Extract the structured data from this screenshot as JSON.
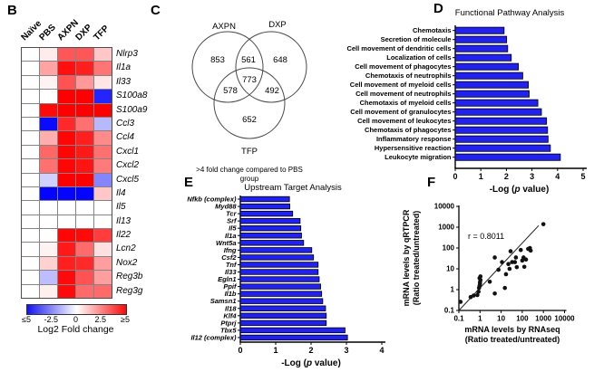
{
  "panels": {
    "b": "B",
    "c": "C",
    "d": "D",
    "e": "E",
    "f": "F"
  },
  "venn": {
    "sets": [
      "AXPN",
      "DXP",
      "TFP"
    ],
    "counts": {
      "axpn_only": "853",
      "axpn_dxp": "561",
      "dxp_only": "648",
      "axpn_tfp": "578",
      "all_three": "773",
      "dxp_tfp": "492",
      "tfp_only": "652"
    },
    "caption_lines": [
      ">4 fold change compared to PBS",
      "group"
    ]
  },
  "chart_data": [
    {
      "type": "heatmap",
      "columns": [
        "Naïve",
        "PBS",
        "AXPN",
        "DXP",
        "TFP"
      ],
      "rows": [
        "Nlrp3",
        "Il1a",
        "Il33",
        "S100a8",
        "S100a9",
        "Ccl3",
        "Ccl4",
        "Cxcl1",
        "Cxcl2",
        "Cxcl5",
        "Il4",
        "Il5",
        "Il13",
        "Il22",
        "Lcn2",
        "Nox2",
        "Reg3b",
        "Reg3g"
      ],
      "values": [
        [
          0,
          0.4,
          3.3,
          3.3,
          1.1
        ],
        [
          0,
          1.8,
          4.7,
          4.4,
          2.7
        ],
        [
          0,
          0.25,
          3.4,
          2.0,
          0.5
        ],
        [
          0,
          0,
          5,
          5,
          -4.3
        ],
        [
          0,
          4.8,
          5,
          5,
          5
        ],
        [
          0,
          -4.8,
          4.2,
          2.8,
          -1.4
        ],
        [
          0,
          1.6,
          4.9,
          4.4,
          2.3
        ],
        [
          0,
          3.0,
          4.9,
          4.5,
          2.8
        ],
        [
          0,
          2.8,
          4.9,
          4.6,
          2.6
        ],
        [
          0,
          -0.9,
          5,
          5,
          -2.4
        ],
        [
          0,
          -4.9,
          -4.9,
          -4.9,
          1.1
        ],
        [
          0,
          0,
          0,
          0,
          0
        ],
        [
          0,
          0,
          0,
          0,
          0
        ],
        [
          0,
          0,
          4.9,
          4.8,
          3.8
        ],
        [
          0,
          0.25,
          4.5,
          2.9,
          0.6
        ],
        [
          0,
          0.9,
          4.4,
          4.2,
          1.9
        ],
        [
          0,
          -1.3,
          4.8,
          3.4,
          1.9
        ],
        [
          0,
          0.3,
          4.8,
          2.9,
          2.9
        ]
      ],
      "scale": {
        "label": "Log2 Fold change",
        "ticks": [
          "≤5",
          "-2.5",
          "0",
          "2.5",
          "≥5"
        ],
        "min": -5,
        "max": 5,
        "neg_color": "#1414f0",
        "pos_color": "#fa0a0a"
      }
    },
    {
      "type": "bar",
      "orientation": "horizontal",
      "title": "Functional Pathway Analysis",
      "categories": [
        "Chemotaxis",
        "Secretion of molecule",
        "Cell movement of dendritic cells",
        "Localization of cells",
        "Cell movement of phagocytes",
        "Chemotaxis of neutrophils",
        "Cell movement of myeloid cells",
        "Cell movement of neutrophils",
        "Chemotaxis of myeloid cells",
        "Cell movement of granulocytes",
        "Cell movement of leukocytes",
        "Chemotaxis of phagocytes",
        "Inflammatory response",
        "Hypersensitive reaction",
        "Leukocyte migration"
      ],
      "values": [
        1.91,
        2.01,
        2.05,
        2.19,
        2.47,
        2.64,
        2.86,
        2.89,
        3.23,
        3.37,
        3.57,
        3.61,
        3.63,
        3.72,
        4.11
      ],
      "xlabel": "-Log (p value)",
      "xlim": [
        0,
        5
      ],
      "bar_color": "#2121f0"
    },
    {
      "type": "bar",
      "orientation": "horizontal",
      "title": "Upstream Target Analysis",
      "categories": [
        "Nfkb (complex)",
        "Myd88",
        "Tcr",
        "Srf",
        "Il5",
        "Il1a",
        "Wnt5a",
        "Ifng",
        "Csf2",
        "Tnf",
        "Il33",
        "Egln1",
        "Ppif",
        "Il1b",
        "Samsn1",
        "Il18",
        "Klf4",
        "Ptprj",
        "Tbx5",
        "Il12 (complex)"
      ],
      "values": [
        1.39,
        1.4,
        1.48,
        1.69,
        1.71,
        1.73,
        1.79,
        2.02,
        2.07,
        2.2,
        2.2,
        2.23,
        2.27,
        2.3,
        2.33,
        2.41,
        2.43,
        2.43,
        2.96,
        3.03
      ],
      "xlabel": "-Log (p value)",
      "xlim": [
        0,
        4
      ],
      "bar_color": "#2121f0"
    },
    {
      "type": "scatter",
      "annotation": "r = 0.8011",
      "xlabel_lines": [
        "mRNA levels by RNAseq",
        "(Ratio treated/untreated)"
      ],
      "ylabel_lines": [
        "mRNA levels by qRTPCR",
        "(Ratio treated/untreated)"
      ],
      "xscale": "log",
      "yscale": "log",
      "xlim": [
        0.1,
        10000
      ],
      "ylim": [
        0.1,
        10000
      ],
      "xticks": [
        0.1,
        1,
        10,
        100,
        1000,
        10000
      ],
      "yticks": [
        0.1,
        1,
        10,
        100,
        1000,
        10000
      ],
      "points": [
        [
          0.12,
          0.26
        ],
        [
          0.36,
          0.44
        ],
        [
          0.5,
          0.52
        ],
        [
          0.75,
          0.55
        ],
        [
          0.85,
          0.8
        ],
        [
          0.9,
          1.2
        ],
        [
          0.95,
          1.5
        ],
        [
          1.0,
          1.9
        ],
        [
          1.0,
          2.3
        ],
        [
          1.05,
          2.9
        ],
        [
          0.95,
          3.6
        ],
        [
          1.05,
          4.3
        ],
        [
          2.9,
          2.4
        ],
        [
          5,
          0.65
        ],
        [
          5,
          35
        ],
        [
          7.5,
          9
        ],
        [
          11,
          21
        ],
        [
          15,
          1.2
        ],
        [
          17,
          5.5
        ],
        [
          22,
          17
        ],
        [
          25,
          10
        ],
        [
          28,
          70
        ],
        [
          33,
          21
        ],
        [
          45,
          21
        ],
        [
          50,
          35
        ],
        [
          55,
          12
        ],
        [
          85,
          80
        ],
        [
          100,
          25
        ],
        [
          115,
          35
        ],
        [
          125,
          12.5
        ],
        [
          150,
          28
        ],
        [
          190,
          90
        ],
        [
          230,
          100
        ],
        [
          250,
          75
        ],
        [
          1000,
          1400
        ]
      ],
      "trendline": [
        [
          0.1,
          0.1
        ],
        [
          600,
          1200
        ]
      ],
      "point_color": "#111111"
    }
  ]
}
